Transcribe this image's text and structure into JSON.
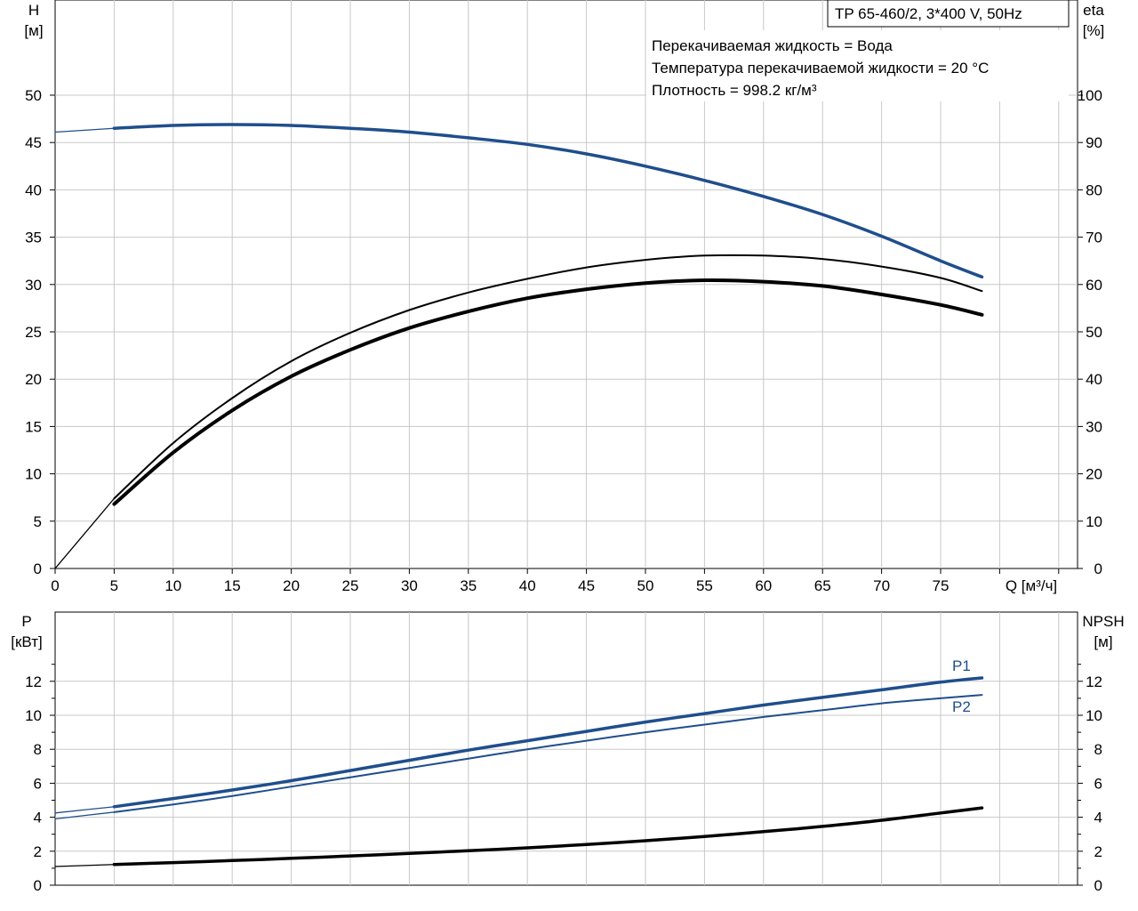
{
  "title_box": "TP 65-460/2, 3*400 V, 50Hz",
  "info_lines": [
    "Перекачиваемая жидкость = Вода",
    "Температура перекачиваемой жидкости = 20 °C",
    "Плотность = 998.2 кг/м³"
  ],
  "top_chart": {
    "left_axis": {
      "label_line1": "H",
      "label_line2": "[м]",
      "ticks": [
        0,
        5,
        10,
        15,
        20,
        25,
        30,
        35,
        40,
        45,
        50
      ],
      "range": [
        0,
        50
      ]
    },
    "right_axis": {
      "label_line1": "eta",
      "label_line2": "[%]",
      "ticks": [
        0,
        10,
        20,
        30,
        40,
        50,
        60,
        70,
        80,
        90,
        100
      ],
      "range": [
        0,
        100
      ]
    },
    "x_axis": {
      "label": "Q [м³/ч]",
      "ticks": [
        0,
        5,
        10,
        15,
        20,
        25,
        30,
        35,
        40,
        45,
        50,
        55,
        60,
        65,
        70,
        75
      ],
      "range": [
        0,
        80
      ]
    }
  },
  "bottom_chart": {
    "left_axis": {
      "label_line1": "P",
      "label_line2": "[кВт]",
      "ticks": [
        0,
        2,
        4,
        6,
        8,
        10,
        12
      ],
      "range": [
        0,
        14.5
      ]
    },
    "right_axis": {
      "label_line1": "NPSH",
      "label_line2": "[м]",
      "ticks": [
        0,
        2,
        4,
        6,
        8,
        10,
        12
      ],
      "range": [
        0,
        14.5
      ]
    }
  },
  "series_labels": {
    "p1": "P1",
    "p2": "P2"
  },
  "colors": {
    "blue": "#1f4e8c",
    "black": "#000000",
    "grid": "#c8c8c8"
  },
  "chart_data": [
    {
      "type": "line",
      "x_unit": "Q [м³/ч]",
      "series": [
        {
          "axis": "H [м]",
          "x": [
            0,
            5,
            10,
            15,
            20,
            25,
            30,
            35,
            40,
            45,
            50,
            55,
            60,
            65,
            70,
            75,
            78.5
          ],
          "values": [
            46.1,
            46.5,
            46.8,
            46.9,
            46.8,
            46.5,
            46.1,
            45.5,
            44.8,
            43.8,
            42.5,
            41.0,
            39.3,
            37.4,
            35.1,
            32.5,
            30.8
          ]
        },
        {
          "axis": "eta [%]",
          "x": [
            0,
            5,
            10,
            15,
            20,
            25,
            30,
            35,
            40,
            45,
            50,
            55,
            60,
            65,
            70,
            75,
            78.5
          ],
          "values": [
            0,
            14.8,
            26.5,
            36.0,
            43.8,
            49.8,
            54.6,
            58.3,
            61.2,
            63.6,
            65.2,
            66.1,
            66.1,
            65.4,
            63.8,
            61.4,
            58.6
          ]
        },
        {
          "axis": "eta [%]",
          "x": [
            5,
            10,
            15,
            20,
            25,
            30,
            35,
            40,
            45,
            50,
            55,
            60,
            65,
            70,
            75,
            78.5
          ],
          "values": [
            13.6,
            24.5,
            33.4,
            40.6,
            46.2,
            50.8,
            54.3,
            57.1,
            59.0,
            60.3,
            60.9,
            60.6,
            59.7,
            57.9,
            55.7,
            53.6
          ]
        }
      ]
    },
    {
      "type": "line",
      "x_unit": "Q [м³/ч]",
      "series": [
        {
          "name": "P1",
          "axis": "P [кВт]",
          "x": [
            0,
            5,
            10,
            15,
            20,
            25,
            30,
            35,
            40,
            45,
            50,
            55,
            60,
            65,
            70,
            75,
            78.5
          ],
          "values": [
            4.25,
            4.62,
            5.1,
            5.6,
            6.15,
            6.75,
            7.35,
            7.95,
            8.5,
            9.05,
            9.6,
            10.1,
            10.6,
            11.05,
            11.5,
            11.95,
            12.2
          ]
        },
        {
          "name": "P2",
          "axis": "P [кВт]",
          "x": [
            0,
            5,
            10,
            15,
            20,
            25,
            30,
            35,
            40,
            45,
            50,
            55,
            60,
            65,
            70,
            75,
            78.5
          ],
          "values": [
            3.9,
            4.3,
            4.75,
            5.25,
            5.8,
            6.35,
            6.9,
            7.45,
            8.0,
            8.5,
            9.0,
            9.45,
            9.9,
            10.3,
            10.7,
            11.0,
            11.2
          ]
        },
        {
          "axis": "NPSH [м]",
          "x": [
            0,
            5,
            10,
            15,
            20,
            25,
            30,
            35,
            40,
            45,
            50,
            55,
            60,
            65,
            70,
            75,
            78.5
          ],
          "values": [
            1.1,
            1.22,
            1.33,
            1.45,
            1.58,
            1.72,
            1.87,
            2.03,
            2.2,
            2.4,
            2.62,
            2.87,
            3.15,
            3.46,
            3.82,
            4.25,
            4.55
          ]
        }
      ]
    }
  ]
}
